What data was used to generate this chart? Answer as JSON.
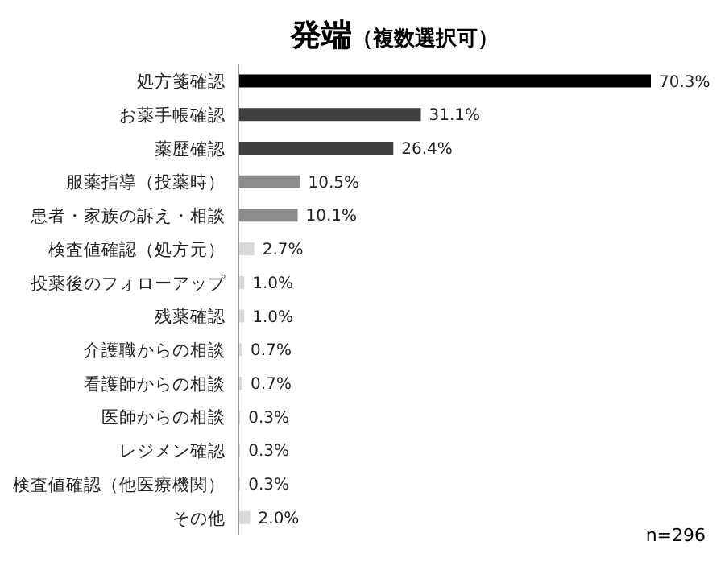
{
  "chart_data": {
    "type": "bar",
    "orientation": "horizontal",
    "title": "発端",
    "subtitle": "（複数選択可）",
    "categories": [
      "処方箋確認",
      "お薬手帳確認",
      "薬歴確認",
      "服薬指導（投薬時）",
      "患者・家族の訴え・相談",
      "検査値確認（処方元）",
      "投薬後のフォローアップ",
      "残薬確認",
      "介護職からの相談",
      "看護師からの相談",
      "医師からの相談",
      "レジメン確認",
      "検査値確認（他医療機関）",
      "その他"
    ],
    "values": [
      70.3,
      31.1,
      26.4,
      10.5,
      10.1,
      2.7,
      1.0,
      1.0,
      0.7,
      0.7,
      0.3,
      0.3,
      0.3,
      2.0
    ],
    "value_labels": [
      "70.3%",
      "31.1%",
      "26.4%",
      "10.5%",
      "10.1%",
      "2.7%",
      "1.0%",
      "1.0%",
      "0.7%",
      "0.7%",
      "0.3%",
      "0.3%",
      "0.3%",
      "2.0%"
    ],
    "colors": [
      "#000000",
      "#3f3f3f",
      "#3f3f3f",
      "#8c8c8c",
      "#8c8c8c",
      "#d9d9d9",
      "#d9d9d9",
      "#d9d9d9",
      "#d9d9d9",
      "#d9d9d9",
      "#d9d9d9",
      "#d9d9d9",
      "#d9d9d9",
      "#d9d9d9"
    ],
    "annotations": [
      "n=296"
    ],
    "grid": false,
    "legend": false
  }
}
